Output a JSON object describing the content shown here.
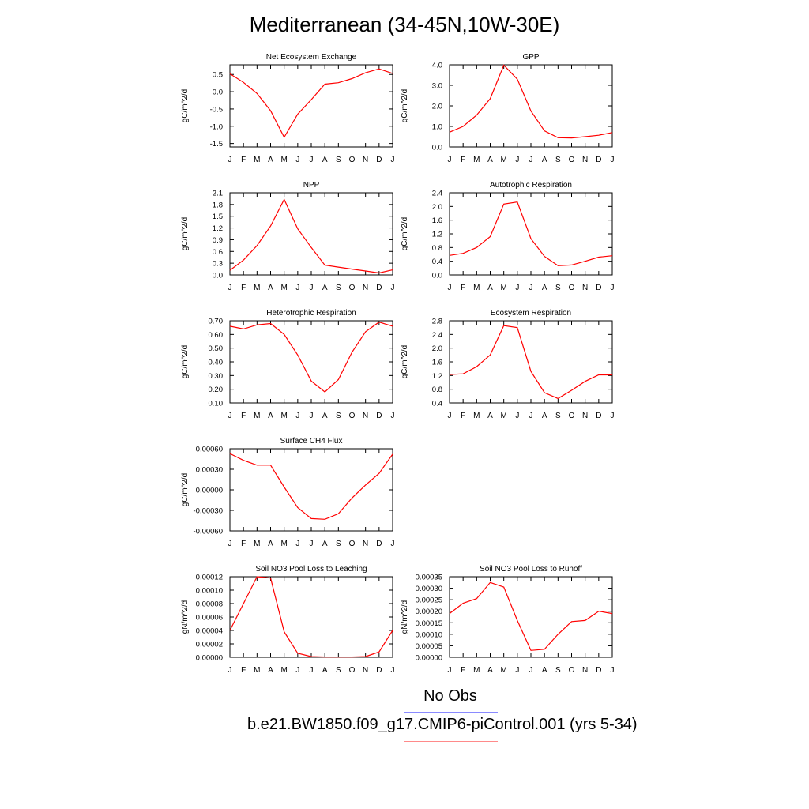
{
  "title": "Mediterranean (34-45N,10W-30E)",
  "legend": {
    "obs_label": "No Obs",
    "obs_color": "#8a8aff",
    "run_label": "b.e21.BW1850.f09_g17.CMIP6-piControl.001 (yrs 5-34)",
    "run_color": "#ff8a8a"
  },
  "line_color": "#ff0000",
  "chart_data": [
    {
      "type": "line",
      "title": "Net Ecosystem Exchange",
      "ylabel": "gC/m^2/d",
      "categories": [
        "J",
        "F",
        "M",
        "A",
        "M",
        "J",
        "J",
        "A",
        "S",
        "O",
        "N",
        "D",
        "J"
      ],
      "yticks": [
        "0.5",
        "0.0",
        "-0.5",
        "-1.0",
        "-1.5"
      ],
      "ylim": [
        -1.6,
        0.78
      ],
      "values": [
        0.52,
        0.27,
        -0.05,
        -0.55,
        -1.32,
        -0.65,
        -0.23,
        0.22,
        0.26,
        0.38,
        0.55,
        0.66,
        0.53
      ]
    },
    {
      "type": "line",
      "title": "GPP",
      "ylabel": "gC/m^2/d",
      "categories": [
        "J",
        "F",
        "M",
        "A",
        "M",
        "J",
        "J",
        "A",
        "S",
        "O",
        "N",
        "D",
        "J"
      ],
      "yticks": [
        "4.0",
        "3.0",
        "2.0",
        "1.0",
        "0.0"
      ],
      "ylim": [
        0.0,
        4.0
      ],
      "values": [
        0.72,
        1.0,
        1.55,
        2.35,
        3.98,
        3.3,
        1.75,
        0.78,
        0.45,
        0.44,
        0.5,
        0.57,
        0.7
      ]
    },
    {
      "type": "line",
      "title": "NPP",
      "ylabel": "gC/m^2/d",
      "categories": [
        "J",
        "F",
        "M",
        "A",
        "M",
        "J",
        "J",
        "A",
        "S",
        "O",
        "N",
        "D",
        "J"
      ],
      "yticks": [
        "2.1",
        "1.8",
        "1.5",
        "1.2",
        "0.9",
        "0.6",
        "0.3",
        "0.0"
      ],
      "ylim": [
        0.0,
        2.1
      ],
      "values": [
        0.12,
        0.38,
        0.75,
        1.25,
        1.93,
        1.18,
        0.7,
        0.25,
        0.2,
        0.15,
        0.1,
        0.05,
        0.13
      ]
    },
    {
      "type": "line",
      "title": "Autotrophic Respiration",
      "ylabel": "gC/m^2/d",
      "categories": [
        "J",
        "F",
        "M",
        "A",
        "M",
        "J",
        "J",
        "A",
        "S",
        "O",
        "N",
        "D",
        "J"
      ],
      "yticks": [
        "2.4",
        "2.0",
        "1.6",
        "1.2",
        "0.8",
        "0.4",
        "0.0"
      ],
      "ylim": [
        0.0,
        2.4
      ],
      "values": [
        0.57,
        0.63,
        0.8,
        1.12,
        2.07,
        2.13,
        1.06,
        0.54,
        0.27,
        0.29,
        0.4,
        0.52,
        0.56
      ]
    },
    {
      "type": "line",
      "title": "Heterotrophic Respiration",
      "ylabel": "gC/m^2/d",
      "categories": [
        "J",
        "F",
        "M",
        "A",
        "M",
        "J",
        "J",
        "A",
        "S",
        "O",
        "N",
        "D",
        "J"
      ],
      "yticks": [
        "0.70",
        "0.60",
        "0.50",
        "0.40",
        "0.30",
        "0.20",
        "0.10"
      ],
      "ylim": [
        0.1,
        0.7
      ],
      "values": [
        0.66,
        0.64,
        0.67,
        0.68,
        0.6,
        0.45,
        0.26,
        0.18,
        0.27,
        0.47,
        0.62,
        0.69,
        0.66
      ]
    },
    {
      "type": "line",
      "title": "Ecosystem Respiration",
      "ylabel": "gC/m^2/d",
      "categories": [
        "J",
        "F",
        "M",
        "A",
        "M",
        "J",
        "J",
        "A",
        "S",
        "O",
        "N",
        "D",
        "J"
      ],
      "yticks": [
        "2.8",
        "2.4",
        "2.0",
        "1.6",
        "1.2",
        "0.8",
        "0.4"
      ],
      "ylim": [
        0.4,
        2.8
      ],
      "values": [
        1.23,
        1.25,
        1.46,
        1.8,
        2.66,
        2.6,
        1.32,
        0.7,
        0.53,
        0.77,
        1.03,
        1.22,
        1.22
      ]
    },
    {
      "type": "line",
      "title": "Surface CH4 Flux",
      "ylabel": "gC/m^2/d",
      "categories": [
        "J",
        "F",
        "M",
        "A",
        "M",
        "J",
        "J",
        "A",
        "S",
        "O",
        "N",
        "D",
        "J"
      ],
      "yticks": [
        "0.00060",
        "0.00030",
        "0.00000",
        "-0.00030",
        "-0.00060"
      ],
      "ylim": [
        -0.0006,
        0.0006
      ],
      "values": [
        0.00053,
        0.00043,
        0.00036,
        0.00036,
        4e-05,
        -0.00026,
        -0.00042,
        -0.00043,
        -0.00035,
        -0.00012,
        7e-05,
        0.00024,
        0.00052
      ]
    },
    {
      "type": "line",
      "title": "Soil NO3 Pool Loss to Leaching",
      "ylabel": "gN/m^2/d",
      "categories": [
        "J",
        "F",
        "M",
        "A",
        "M",
        "J",
        "J",
        "A",
        "S",
        "O",
        "N",
        "D",
        "J"
      ],
      "yticks": [
        "0.00012",
        "0.00010",
        "0.00008",
        "0.00006",
        "0.00004",
        "0.00002",
        "0.00000"
      ],
      "ylim": [
        0.0,
        0.00012
      ],
      "values": [
        4e-05,
        8e-05,
        0.00012,
        0.000118,
        3.8e-05,
        6e-06,
        1e-06,
        5e-07,
        5e-07,
        5e-07,
        1e-06,
        8e-06,
        4e-05
      ]
    },
    {
      "type": "line",
      "title": "Soil NO3 Pool Loss to Runoff",
      "ylabel": "gN/m^2/d",
      "categories": [
        "J",
        "F",
        "M",
        "A",
        "M",
        "J",
        "J",
        "A",
        "S",
        "O",
        "N",
        "D",
        "J"
      ],
      "yticks": [
        "0.00035",
        "0.00030",
        "0.00025",
        "0.00020",
        "0.00015",
        "0.00010",
        "0.00005",
        "0.00000"
      ],
      "ylim": [
        0.0,
        0.00035
      ],
      "values": [
        0.00019,
        0.000235,
        0.000255,
        0.000325,
        0.000305,
        0.00016,
        3e-05,
        3.5e-05,
        0.0001,
        0.000155,
        0.00016,
        0.0002,
        0.00019
      ]
    }
  ]
}
